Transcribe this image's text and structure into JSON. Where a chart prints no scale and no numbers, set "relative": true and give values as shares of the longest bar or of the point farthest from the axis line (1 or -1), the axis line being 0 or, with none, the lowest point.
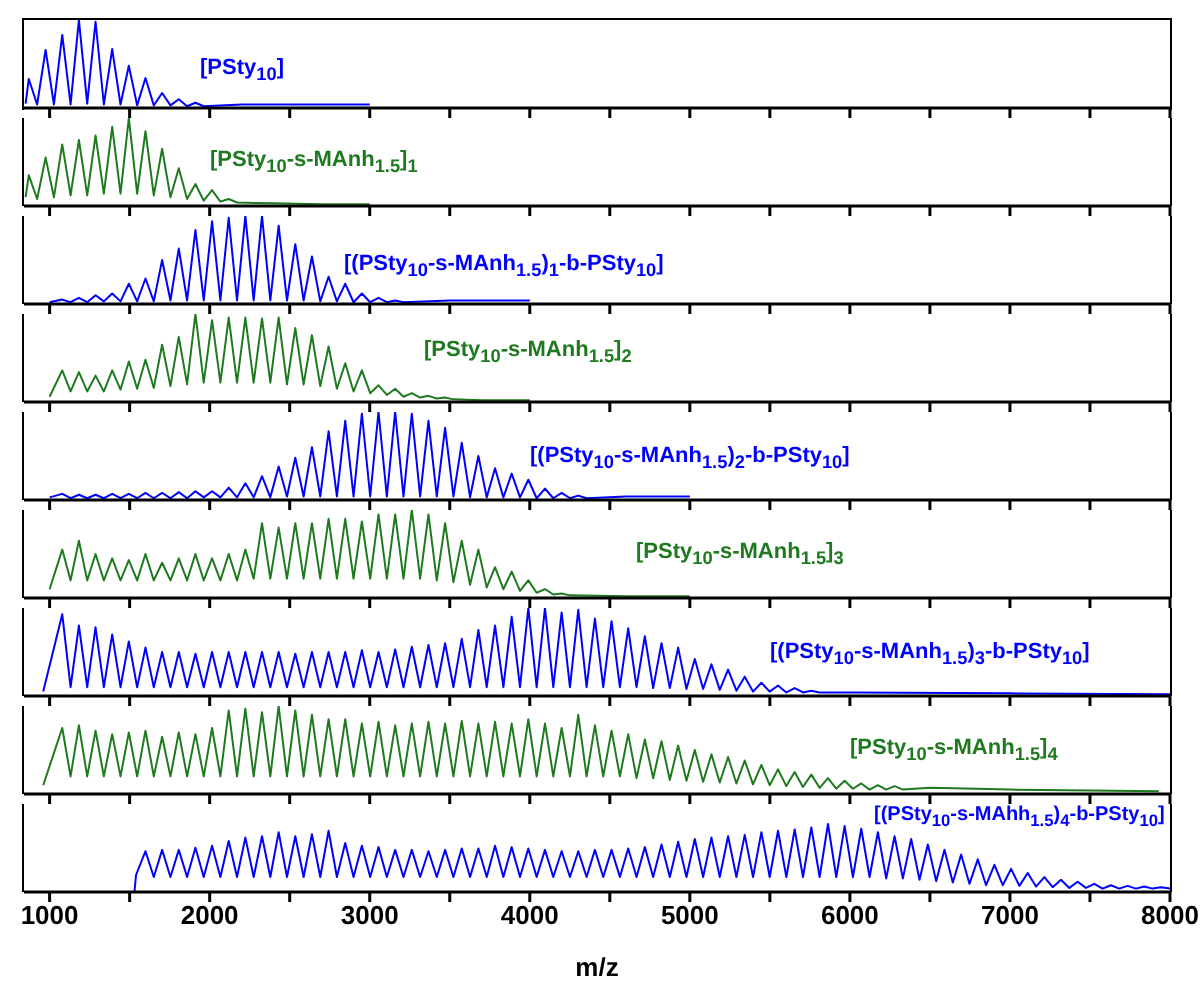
{
  "chart_data": [
    {
      "type": "line",
      "relative": true,
      "color": "#0000ff",
      "tick_labels": false,
      "xlim": [
        840,
        8000
      ],
      "xticks": [
        1000,
        {
          "value": 1500,
          "label": null
        },
        2000,
        {
          "value": 2500,
          "label": null
        },
        3000,
        {
          "value": 3500,
          "label": null
        },
        4000,
        {
          "value": 4500,
          "label": null
        },
        5000,
        {
          "value": 5500,
          "label": null
        },
        6000,
        {
          "value": 6500,
          "label": null
        },
        7000,
        {
          "value": 7500,
          "label": null
        },
        8000
      ],
      "annotations": [
        "[PSty$_{10}$]"
      ],
      "x": [
        850,
        870,
        922,
        975,
        1027,
        1079,
        1131,
        1183,
        1235,
        1287,
        1339,
        1391,
        1443,
        1495,
        1547,
        1599,
        1651,
        1703,
        1755,
        1807,
        1859,
        1911,
        1963,
        2200,
        2600,
        3000
      ],
      "values": [
        0.05,
        0.33,
        0.04,
        0.66,
        0.04,
        0.83,
        0.04,
        1,
        0.05,
        0.98,
        0.04,
        0.67,
        0.04,
        0.48,
        0.03,
        0.34,
        0.03,
        0.17,
        0.03,
        0.1,
        0.02,
        0.06,
        0.02,
        0.04,
        0.04,
        0.04
      ]
    },
    {
      "type": "line",
      "relative": true,
      "color": "#1f7a1f",
      "tick_labels": false,
      "xlim": [
        840,
        8000
      ],
      "xticks": [
        1000,
        {
          "value": 1500,
          "label": null
        },
        2000,
        {
          "value": 2500,
          "label": null
        },
        3000,
        {
          "value": 3500,
          "label": null
        },
        4000,
        {
          "value": 4500,
          "label": null
        },
        5000,
        {
          "value": 5500,
          "label": null
        },
        6000,
        {
          "value": 6500,
          "label": null
        },
        7000,
        {
          "value": 7500,
          "label": null
        },
        8000
      ],
      "annotations": [
        "[PSty$_{10}$-s-MAnh$_{1.5}$]$_{1}$"
      ],
      "x": [
        850,
        870,
        922,
        975,
        1027,
        1079,
        1131,
        1183,
        1235,
        1287,
        1339,
        1391,
        1443,
        1495,
        1547,
        1599,
        1651,
        1703,
        1755,
        1807,
        1859,
        1911,
        1963,
        2015,
        2067,
        2119,
        2171,
        2400,
        2700,
        3000
      ],
      "values": [
        0.1,
        0.35,
        0.08,
        0.55,
        0.1,
        0.7,
        0.12,
        0.75,
        0.12,
        0.8,
        0.14,
        0.9,
        0.14,
        1,
        0.14,
        0.85,
        0.12,
        0.65,
        0.1,
        0.43,
        0.08,
        0.25,
        0.06,
        0.18,
        0.05,
        0.08,
        0.04,
        0.03,
        0.02,
        0.02
      ]
    },
    {
      "type": "line",
      "relative": true,
      "color": "#0000ff",
      "tick_labels": false,
      "xlim": [
        840,
        8000
      ],
      "xticks": [
        1000,
        {
          "value": 1500,
          "label": null
        },
        2000,
        {
          "value": 2500,
          "label": null
        },
        3000,
        {
          "value": 3500,
          "label": null
        },
        4000,
        {
          "value": 4500,
          "label": null
        },
        5000,
        {
          "value": 5500,
          "label": null
        },
        6000,
        {
          "value": 6500,
          "label": null
        },
        7000,
        {
          "value": 7500,
          "label": null
        },
        8000
      ],
      "annotations": [
        "[(PSty$_{10}$-s-MAnh$_{1.5}$)$_{1}$-b-PSty$_{10}$]"
      ],
      "x": [
        1000,
        1079,
        1131,
        1183,
        1235,
        1287,
        1339,
        1391,
        1443,
        1495,
        1547,
        1599,
        1651,
        1703,
        1755,
        1807,
        1859,
        1911,
        1963,
        2015,
        2067,
        2119,
        2171,
        2223,
        2275,
        2327,
        2379,
        2431,
        2483,
        2535,
        2587,
        2639,
        2691,
        2743,
        2795,
        2847,
        2899,
        2951,
        3003,
        3055,
        3107,
        3159,
        3211,
        3500,
        4000
      ],
      "values": [
        0.02,
        0.05,
        0.02,
        0.07,
        0.02,
        0.1,
        0.03,
        0.12,
        0.03,
        0.23,
        0.03,
        0.29,
        0.03,
        0.5,
        0.04,
        0.63,
        0.04,
        0.84,
        0.04,
        0.94,
        0.04,
        0.98,
        0.04,
        1,
        0.04,
        1,
        0.04,
        0.89,
        0.04,
        0.68,
        0.04,
        0.54,
        0.03,
        0.31,
        0.03,
        0.23,
        0.02,
        0.12,
        0.02,
        0.07,
        0.02,
        0.04,
        0.02,
        0.04,
        0.04
      ]
    },
    {
      "type": "line",
      "relative": true,
      "color": "#1f7a1f",
      "tick_labels": false,
      "xlim": [
        840,
        8000
      ],
      "xticks": [
        1000,
        {
          "value": 1500,
          "label": null
        },
        2000,
        {
          "value": 2500,
          "label": null
        },
        3000,
        {
          "value": 3500,
          "label": null
        },
        4000,
        {
          "value": 4500,
          "label": null
        },
        5000,
        {
          "value": 5500,
          "label": null
        },
        6000,
        {
          "value": 6500,
          "label": null
        },
        7000,
        {
          "value": 7500,
          "label": null
        },
        8000
      ],
      "annotations": [
        "[PSty$_{10}$-s-MAnh$_{1.5}$]$_{2}$"
      ],
      "x": [
        1000,
        1079,
        1131,
        1183,
        1235,
        1287,
        1339,
        1391,
        1443,
        1495,
        1547,
        1599,
        1651,
        1703,
        1755,
        1807,
        1859,
        1911,
        1963,
        2015,
        2067,
        2119,
        2171,
        2223,
        2275,
        2327,
        2379,
        2431,
        2483,
        2535,
        2587,
        2639,
        2691,
        2743,
        2795,
        2847,
        2899,
        2951,
        3003,
        3055,
        3107,
        3159,
        3211,
        3263,
        3315,
        3367,
        3419,
        3471,
        3523,
        3700,
        4000
      ],
      "values": [
        0.06,
        0.36,
        0.12,
        0.34,
        0.12,
        0.3,
        0.12,
        0.36,
        0.14,
        0.46,
        0.15,
        0.48,
        0.16,
        0.65,
        0.18,
        0.74,
        0.2,
        1,
        0.22,
        0.93,
        0.22,
        0.96,
        0.22,
        0.96,
        0.22,
        0.95,
        0.22,
        0.96,
        0.2,
        0.84,
        0.2,
        0.76,
        0.18,
        0.63,
        0.15,
        0.44,
        0.12,
        0.36,
        0.1,
        0.19,
        0.08,
        0.15,
        0.06,
        0.1,
        0.05,
        0.07,
        0.04,
        0.05,
        0.03,
        0.02,
        0.02
      ]
    },
    {
      "type": "line",
      "relative": true,
      "color": "#0000ff",
      "tick_labels": false,
      "xlim": [
        840,
        8000
      ],
      "xticks": [
        1000,
        {
          "value": 1500,
          "label": null
        },
        2000,
        {
          "value": 2500,
          "label": null
        },
        3000,
        {
          "value": 3500,
          "label": null
        },
        4000,
        {
          "value": 4500,
          "label": null
        },
        5000,
        {
          "value": 5500,
          "label": null
        },
        6000,
        {
          "value": 6500,
          "label": null
        },
        7000,
        {
          "value": 7500,
          "label": null
        },
        8000
      ],
      "annotations": [
        "[(PSty$_{10}$-s-MAnh$_{1.5}$)$_{2}$-b-PSty$_{10}$]"
      ],
      "x": [
        1000,
        1079,
        1131,
        1183,
        1235,
        1287,
        1339,
        1391,
        1443,
        1495,
        1547,
        1599,
        1651,
        1703,
        1755,
        1807,
        1859,
        1911,
        1963,
        2015,
        2067,
        2119,
        2171,
        2223,
        2275,
        2327,
        2379,
        2431,
        2483,
        2535,
        2587,
        2639,
        2691,
        2743,
        2795,
        2847,
        2899,
        2951,
        3003,
        3055,
        3107,
        3159,
        3211,
        3263,
        3315,
        3367,
        3419,
        3471,
        3523,
        3575,
        3627,
        3679,
        3731,
        3783,
        3835,
        3887,
        3939,
        3991,
        4043,
        4095,
        4147,
        4199,
        4251,
        4303,
        4355,
        4600,
        5000
      ],
      "values": [
        0.03,
        0.07,
        0.02,
        0.06,
        0.02,
        0.06,
        0.02,
        0.07,
        0.02,
        0.07,
        0.02,
        0.08,
        0.02,
        0.08,
        0.02,
        0.09,
        0.02,
        0.1,
        0.03,
        0.1,
        0.03,
        0.14,
        0.03,
        0.19,
        0.03,
        0.27,
        0.03,
        0.38,
        0.04,
        0.48,
        0.04,
        0.6,
        0.04,
        0.78,
        0.04,
        0.9,
        0.04,
        0.98,
        0.04,
        1,
        0.04,
        1,
        0.04,
        0.98,
        0.04,
        0.9,
        0.04,
        0.82,
        0.04,
        0.65,
        0.03,
        0.5,
        0.03,
        0.36,
        0.03,
        0.3,
        0.03,
        0.23,
        0.02,
        0.13,
        0.02,
        0.08,
        0.02,
        0.05,
        0.02,
        0.04,
        0.04
      ]
    },
    {
      "type": "line",
      "relative": true,
      "color": "#1f7a1f",
      "tick_labels": false,
      "xlim": [
        840,
        8000
      ],
      "xticks": [
        1000,
        {
          "value": 1500,
          "label": null
        },
        2000,
        {
          "value": 2500,
          "label": null
        },
        3000,
        {
          "value": 3500,
          "label": null
        },
        4000,
        {
          "value": 4500,
          "label": null
        },
        5000,
        {
          "value": 5500,
          "label": null
        },
        6000,
        {
          "value": 6500,
          "label": null
        },
        7000,
        {
          "value": 7500,
          "label": null
        },
        8000
      ],
      "annotations": [
        "[PSty$_{10}$-s-MAnh$_{1.5}$]$_{3}$"
      ],
      "x": [
        1000,
        1079,
        1131,
        1183,
        1235,
        1287,
        1339,
        1391,
        1443,
        1495,
        1547,
        1599,
        1651,
        1703,
        1755,
        1807,
        1859,
        1911,
        1963,
        2015,
        2067,
        2119,
        2171,
        2223,
        2275,
        2327,
        2379,
        2431,
        2483,
        2535,
        2587,
        2639,
        2691,
        2743,
        2795,
        2847,
        2899,
        2951,
        3003,
        3055,
        3107,
        3159,
        3211,
        3263,
        3315,
        3367,
        3419,
        3471,
        3523,
        3575,
        3627,
        3679,
        3731,
        3783,
        3835,
        3887,
        3939,
        3991,
        4043,
        4095,
        4147,
        4199,
        4251,
        4600,
        5000
      ],
      "values": [
        0.1,
        0.55,
        0.2,
        0.65,
        0.2,
        0.5,
        0.2,
        0.45,
        0.2,
        0.43,
        0.2,
        0.5,
        0.2,
        0.4,
        0.2,
        0.45,
        0.2,
        0.5,
        0.2,
        0.45,
        0.2,
        0.5,
        0.2,
        0.55,
        0.22,
        0.85,
        0.22,
        0.8,
        0.22,
        0.85,
        0.22,
        0.85,
        0.22,
        0.9,
        0.22,
        0.9,
        0.22,
        0.87,
        0.22,
        0.95,
        0.22,
        0.95,
        0.22,
        1,
        0.22,
        0.95,
        0.2,
        0.85,
        0.18,
        0.65,
        0.15,
        0.55,
        0.12,
        0.35,
        0.1,
        0.3,
        0.08,
        0.2,
        0.06,
        0.1,
        0.04,
        0.05,
        0.03,
        0.02,
        0.02
      ]
    },
    {
      "type": "line",
      "relative": true,
      "color": "#0000ff",
      "tick_labels": false,
      "xlim": [
        840,
        8000
      ],
      "xticks": [
        1000,
        {
          "value": 1500,
          "label": null
        },
        2000,
        {
          "value": 2500,
          "label": null
        },
        3000,
        {
          "value": 3500,
          "label": null
        },
        4000,
        {
          "value": 4500,
          "label": null
        },
        5000,
        {
          "value": 5500,
          "label": null
        },
        6000,
        {
          "value": 6500,
          "label": null
        },
        7000,
        {
          "value": 7500,
          "label": null
        },
        8000
      ],
      "annotations": [
        "[(PSty$_{10}$-s-MAnh$_{1.5}$)$_{3}$-b-PSty$_{10}$]"
      ],
      "x": [
        960,
        1079,
        1131,
        1183,
        1235,
        1287,
        1339,
        1391,
        1443,
        1495,
        1547,
        1599,
        1651,
        1703,
        1755,
        1807,
        1859,
        1911,
        1963,
        2015,
        2067,
        2119,
        2171,
        2223,
        2275,
        2327,
        2379,
        2431,
        2483,
        2535,
        2587,
        2639,
        2691,
        2743,
        2795,
        2847,
        2899,
        2951,
        3003,
        3055,
        3107,
        3159,
        3211,
        3263,
        3315,
        3367,
        3419,
        3471,
        3523,
        3575,
        3627,
        3679,
        3731,
        3783,
        3835,
        3887,
        3939,
        3991,
        4043,
        4095,
        4147,
        4199,
        4251,
        4303,
        4355,
        4407,
        4459,
        4511,
        4563,
        4615,
        4667,
        4719,
        4771,
        4823,
        4875,
        4927,
        4979,
        5031,
        5083,
        5135,
        5187,
        5239,
        5291,
        5343,
        5395,
        5447,
        5499,
        5551,
        5603,
        5655,
        5707,
        5759,
        5811,
        6000,
        7000,
        8000
      ],
      "values": [
        0.05,
        0.93,
        0.1,
        0.8,
        0.1,
        0.78,
        0.1,
        0.7,
        0.1,
        0.62,
        0.1,
        0.55,
        0.1,
        0.5,
        0.1,
        0.5,
        0.1,
        0.48,
        0.1,
        0.5,
        0.1,
        0.5,
        0.1,
        0.5,
        0.1,
        0.5,
        0.1,
        0.5,
        0.1,
        0.48,
        0.1,
        0.5,
        0.1,
        0.5,
        0.1,
        0.5,
        0.1,
        0.52,
        0.1,
        0.5,
        0.1,
        0.53,
        0.1,
        0.56,
        0.1,
        0.58,
        0.1,
        0.6,
        0.1,
        0.65,
        0.1,
        0.75,
        0.1,
        0.8,
        0.1,
        0.9,
        0.1,
        1,
        0.1,
        1,
        0.1,
        0.95,
        0.1,
        0.98,
        0.1,
        0.88,
        0.1,
        0.85,
        0.1,
        0.77,
        0.1,
        0.68,
        0.09,
        0.6,
        0.09,
        0.55,
        0.08,
        0.42,
        0.08,
        0.36,
        0.07,
        0.3,
        0.06,
        0.22,
        0.05,
        0.15,
        0.05,
        0.12,
        0.04,
        0.09,
        0.04,
        0.06,
        0.04,
        0.04,
        0.03,
        0.02
      ]
    },
    {
      "type": "line",
      "relative": true,
      "color": "#1f7a1f",
      "tick_labels": false,
      "xlim": [
        840,
        8000
      ],
      "xticks": [
        1000,
        {
          "value": 1500,
          "label": null
        },
        2000,
        {
          "value": 2500,
          "label": null
        },
        3000,
        {
          "value": 3500,
          "label": null
        },
        4000,
        {
          "value": 4500,
          "label": null
        },
        5000,
        {
          "value": 5500,
          "label": null
        },
        6000,
        {
          "value": 6500,
          "label": null
        },
        7000,
        {
          "value": 7500,
          "label": null
        },
        8000
      ],
      "annotations": [
        "[PSty$_{10}$-s-MAnh$_{1.5}$]$_{4}$"
      ],
      "x": [
        960,
        1079,
        1131,
        1183,
        1235,
        1287,
        1339,
        1391,
        1443,
        1495,
        1547,
        1599,
        1651,
        1703,
        1755,
        1807,
        1859,
        1911,
        1963,
        2015,
        2067,
        2119,
        2171,
        2223,
        2275,
        2327,
        2379,
        2431,
        2483,
        2535,
        2587,
        2639,
        2691,
        2743,
        2795,
        2847,
        2899,
        2951,
        3003,
        3055,
        3107,
        3159,
        3211,
        3263,
        3315,
        3367,
        3419,
        3471,
        3523,
        3575,
        3627,
        3679,
        3731,
        3783,
        3835,
        3887,
        3939,
        3991,
        4043,
        4095,
        4147,
        4199,
        4251,
        4303,
        4355,
        4407,
        4459,
        4511,
        4563,
        4615,
        4667,
        4719,
        4771,
        4823,
        4875,
        4927,
        4979,
        5031,
        5083,
        5135,
        5187,
        5239,
        5291,
        5343,
        5395,
        5447,
        5499,
        5551,
        5603,
        5655,
        5707,
        5759,
        5811,
        5863,
        5915,
        5967,
        6019,
        6071,
        6123,
        6175,
        6227,
        6279,
        6331,
        6500,
        7000,
        7500,
        7930
      ],
      "values": [
        0.1,
        0.75,
        0.2,
        0.78,
        0.2,
        0.72,
        0.2,
        0.68,
        0.2,
        0.7,
        0.2,
        0.72,
        0.2,
        0.65,
        0.2,
        0.7,
        0.2,
        0.68,
        0.2,
        0.75,
        0.2,
        0.95,
        0.2,
        0.97,
        0.2,
        0.93,
        0.2,
        1,
        0.2,
        0.95,
        0.2,
        0.9,
        0.2,
        0.85,
        0.2,
        0.85,
        0.2,
        0.8,
        0.2,
        0.82,
        0.2,
        0.78,
        0.2,
        0.8,
        0.2,
        0.82,
        0.2,
        0.8,
        0.2,
        0.83,
        0.2,
        0.8,
        0.2,
        0.82,
        0.2,
        0.8,
        0.2,
        0.85,
        0.2,
        0.8,
        0.2,
        0.75,
        0.2,
        0.9,
        0.2,
        0.78,
        0.2,
        0.72,
        0.2,
        0.68,
        0.18,
        0.62,
        0.18,
        0.6,
        0.16,
        0.55,
        0.15,
        0.5,
        0.14,
        0.45,
        0.13,
        0.42,
        0.12,
        0.38,
        0.11,
        0.33,
        0.1,
        0.28,
        0.09,
        0.25,
        0.08,
        0.22,
        0.07,
        0.18,
        0.06,
        0.15,
        0.06,
        0.12,
        0.05,
        0.1,
        0.05,
        0.09,
        0.05,
        0.07,
        0.05,
        0.04,
        0.03
      ]
    },
    {
      "type": "line",
      "relative": true,
      "color": "#0000ff",
      "xlabel": "m/z",
      "xlim": [
        840,
        8000
      ],
      "xticks": [
        1000,
        {
          "value": 1500,
          "label": null
        },
        2000,
        {
          "value": 2500,
          "label": null
        },
        3000,
        {
          "value": 3500,
          "label": null
        },
        4000,
        {
          "value": 4500,
          "label": null
        },
        5000,
        {
          "value": 5500,
          "label": null
        },
        6000,
        {
          "value": 6500,
          "label": null
        },
        7000,
        {
          "value": 7500,
          "label": null
        },
        8000
      ],
      "annotations": [
        "[(PSty$_{10}$-s-MAhh$_{1.5}$)$_{4}$-b-PSty$_{10}$]"
      ],
      "x": [
        1530,
        1540,
        1599,
        1651,
        1703,
        1755,
        1807,
        1859,
        1911,
        1963,
        2015,
        2067,
        2119,
        2171,
        2223,
        2275,
        2327,
        2379,
        2431,
        2483,
        2535,
        2587,
        2639,
        2691,
        2743,
        2795,
        2847,
        2899,
        2951,
        3003,
        3055,
        3107,
        3159,
        3211,
        3263,
        3315,
        3367,
        3419,
        3471,
        3523,
        3575,
        3627,
        3679,
        3731,
        3783,
        3835,
        3887,
        3939,
        3991,
        4043,
        4095,
        4147,
        4199,
        4251,
        4303,
        4355,
        4407,
        4459,
        4511,
        4563,
        4615,
        4667,
        4719,
        4771,
        4823,
        4875,
        4927,
        4979,
        5031,
        5083,
        5135,
        5187,
        5239,
        5291,
        5343,
        5395,
        5447,
        5499,
        5551,
        5603,
        5655,
        5707,
        5759,
        5811,
        5863,
        5915,
        5967,
        6019,
        6071,
        6123,
        6175,
        6227,
        6279,
        6331,
        6383,
        6435,
        6487,
        6539,
        6591,
        6643,
        6695,
        6747,
        6799,
        6851,
        6903,
        6955,
        7007,
        7059,
        7111,
        7163,
        7215,
        7267,
        7319,
        7371,
        7423,
        7475,
        7527,
        7579,
        7631,
        7683,
        7735,
        7787,
        7839,
        7891,
        7943,
        8000
      ],
      "values": [
        0,
        0.25,
        0.6,
        0.22,
        0.62,
        0.22,
        0.62,
        0.22,
        0.65,
        0.22,
        0.68,
        0.22,
        0.75,
        0.22,
        0.8,
        0.22,
        0.82,
        0.22,
        0.88,
        0.22,
        0.82,
        0.22,
        0.85,
        0.22,
        0.9,
        0.22,
        0.72,
        0.22,
        0.68,
        0.22,
        0.66,
        0.22,
        0.62,
        0.22,
        0.62,
        0.22,
        0.6,
        0.22,
        0.62,
        0.22,
        0.64,
        0.22,
        0.64,
        0.22,
        0.68,
        0.22,
        0.66,
        0.22,
        0.64,
        0.22,
        0.62,
        0.22,
        0.6,
        0.22,
        0.6,
        0.22,
        0.62,
        0.22,
        0.62,
        0.22,
        0.64,
        0.22,
        0.66,
        0.22,
        0.7,
        0.22,
        0.74,
        0.22,
        0.78,
        0.22,
        0.8,
        0.22,
        0.82,
        0.22,
        0.84,
        0.22,
        0.88,
        0.22,
        0.9,
        0.22,
        0.92,
        0.22,
        0.95,
        0.22,
        1,
        0.22,
        0.97,
        0.22,
        0.93,
        0.22,
        0.88,
        0.2,
        0.82,
        0.2,
        0.78,
        0.18,
        0.7,
        0.16,
        0.62,
        0.14,
        0.55,
        0.12,
        0.48,
        0.1,
        0.4,
        0.1,
        0.34,
        0.09,
        0.28,
        0.08,
        0.22,
        0.07,
        0.18,
        0.06,
        0.15,
        0.06,
        0.12,
        0.05,
        0.1,
        0.05,
        0.09,
        0.05,
        0.08,
        0.05,
        0.07,
        0.05
      ]
    }
  ]
}
